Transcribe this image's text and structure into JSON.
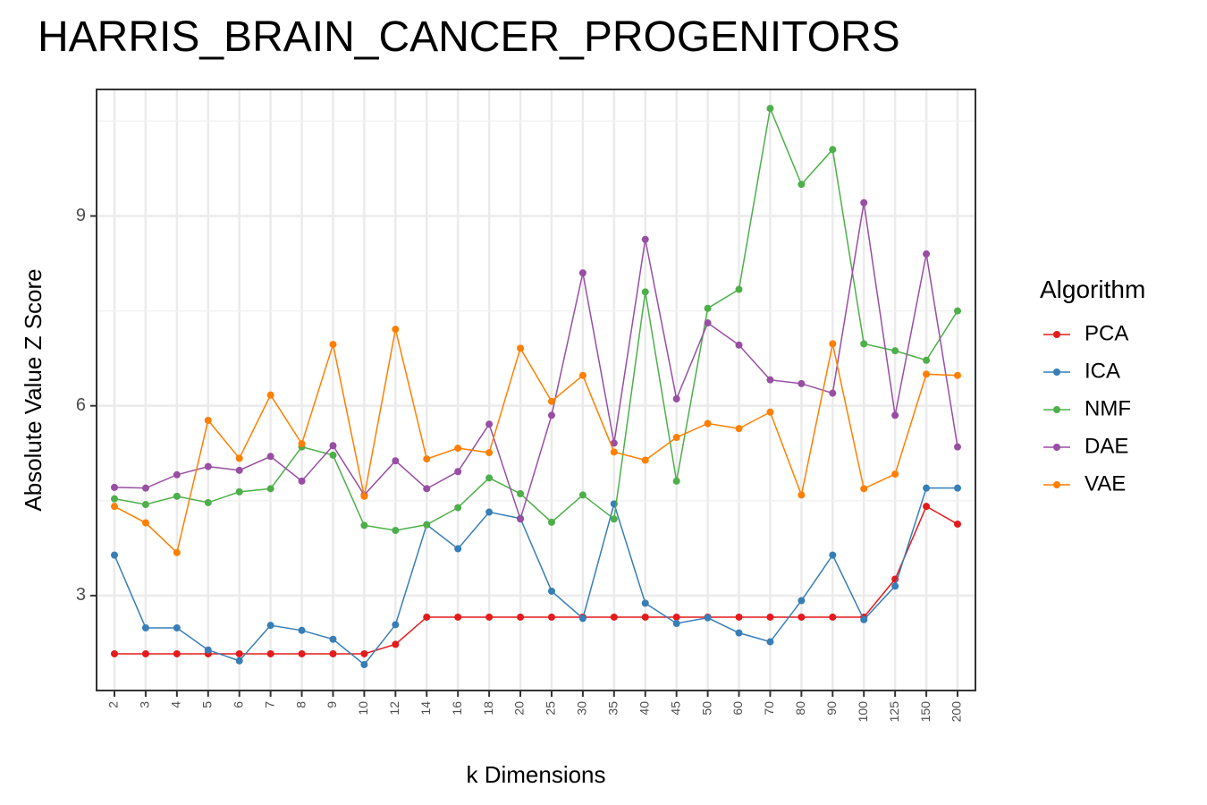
{
  "chart_data": {
    "type": "line",
    "title": "HARRIS_BRAIN_CANCER_PROGENITORS",
    "xlabel": "k Dimensions",
    "ylabel": "Absolute Value Z Score",
    "categories": [
      "2",
      "3",
      "4",
      "5",
      "6",
      "7",
      "8",
      "9",
      "10",
      "12",
      "14",
      "16",
      "18",
      "20",
      "25",
      "30",
      "35",
      "40",
      "45",
      "50",
      "60",
      "70",
      "80",
      "90",
      "100",
      "125",
      "150",
      "200"
    ],
    "yticks": [
      3,
      6,
      9
    ],
    "ylim": [
      1.5,
      11.0
    ],
    "grid": true,
    "legend": {
      "title": "Algorithm",
      "position": "right"
    },
    "series": [
      {
        "name": "PCA",
        "color": "#e41a1c",
        "values": [
          2.08,
          2.08,
          2.08,
          2.08,
          2.08,
          2.08,
          2.08,
          2.08,
          2.08,
          2.23,
          2.66,
          2.66,
          2.66,
          2.66,
          2.66,
          2.66,
          2.66,
          2.66,
          2.66,
          2.66,
          2.66,
          2.66,
          2.66,
          2.66,
          2.66,
          3.26,
          4.41,
          4.13
        ]
      },
      {
        "name": "ICA",
        "color": "#377eb8",
        "values": [
          3.64,
          2.49,
          2.49,
          2.14,
          1.97,
          2.53,
          2.45,
          2.31,
          1.91,
          2.54,
          4.12,
          3.74,
          4.32,
          4.22,
          3.07,
          2.64,
          4.45,
          2.88,
          2.56,
          2.65,
          2.41,
          2.27,
          2.92,
          3.64,
          2.62,
          3.15,
          4.7,
          4.7
        ]
      },
      {
        "name": "NMF",
        "color": "#4daf4a",
        "values": [
          4.53,
          4.44,
          4.57,
          4.47,
          4.64,
          4.69,
          5.35,
          5.22,
          4.11,
          4.03,
          4.12,
          4.39,
          4.86,
          4.61,
          4.16,
          4.59,
          4.21,
          7.8,
          4.81,
          7.54,
          7.84,
          10.7,
          9.5,
          10.05,
          6.98,
          6.87,
          6.72,
          7.5
        ]
      },
      {
        "name": "DAE",
        "color": "#984ea3",
        "values": [
          4.71,
          4.7,
          4.91,
          5.04,
          4.98,
          5.2,
          4.81,
          5.37,
          4.59,
          5.13,
          4.69,
          4.96,
          5.71,
          4.21,
          5.85,
          8.1,
          5.41,
          8.63,
          6.11,
          7.31,
          6.96,
          6.41,
          6.35,
          6.2,
          9.21,
          5.85,
          8.4,
          5.35
        ]
      },
      {
        "name": "VAE",
        "color": "#ff7f00",
        "values": [
          4.41,
          4.15,
          3.68,
          5.77,
          5.17,
          6.17,
          5.4,
          6.97,
          4.57,
          7.21,
          5.16,
          5.33,
          5.26,
          6.91,
          6.07,
          6.48,
          5.27,
          5.14,
          5.5,
          5.72,
          5.64,
          5.9,
          4.59,
          6.98,
          4.69,
          4.92,
          6.5,
          6.48
        ]
      }
    ]
  }
}
